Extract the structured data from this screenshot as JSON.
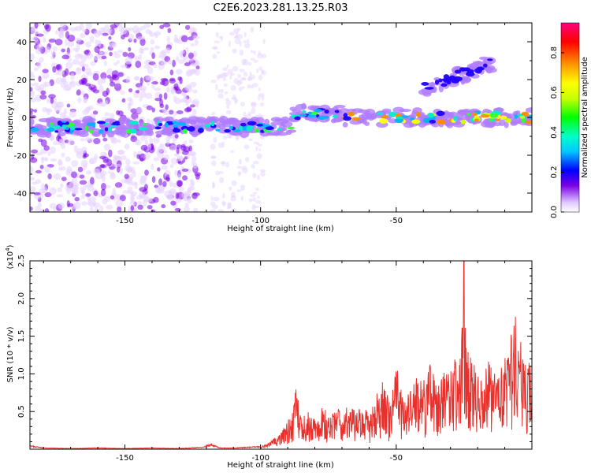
{
  "title": "C2E6.2023.281.13.25.R03",
  "chart_data": [
    {
      "type": "heatmap",
      "xlabel": "Height of straight line (km)",
      "ylabel": "Frequency (Hz)",
      "xlim": [
        -185,
        0
      ],
      "ylim": [
        -50,
        50
      ],
      "xticks": [
        -150,
        -100,
        -50
      ],
      "yticks": [
        -40,
        -20,
        0,
        20,
        40
      ],
      "colorbar": {
        "label": "Normalized spectral amplitude",
        "range": [
          0,
          0.95
        ],
        "ticks": [
          0.0,
          0.2,
          0.4,
          0.6,
          0.8
        ]
      },
      "features": [
        {
          "x_start": -185,
          "x_end": -123,
          "y_center": -5,
          "max_amplitude": 0.55
        },
        {
          "x_start": -123,
          "x_end": -88,
          "y_center": -5,
          "max_amplitude": 0.6
        },
        {
          "x_start": -88,
          "x_end": -70,
          "y_center": 2,
          "max_amplitude": 0.6
        },
        {
          "x_start": -70,
          "x_end": 0,
          "y_center": 0,
          "max_amplitude": 0.95
        },
        {
          "x_start": -40,
          "x_end": -15,
          "y_center": 20,
          "max_amplitude": 0.25
        }
      ]
    },
    {
      "type": "line",
      "xlabel": "Height of straight line (km)",
      "ylabel": "SNR (10 * v/v)",
      "y_multiplier": "(x10",
      "y_multiplier_exp": "4",
      "y_multiplier_close": ")",
      "xlim": [
        -185,
        0
      ],
      "ylim": [
        0,
        2.5
      ],
      "xticks": [
        -150,
        -100,
        -50
      ],
      "yticks": [
        0.5,
        1.0,
        1.5,
        2.0,
        2.5
      ],
      "color": "#e8312d",
      "series": [
        {
          "x": [
            -185,
            -180,
            -170,
            -160,
            -150,
            -140,
            -130,
            -122,
            -118,
            -115,
            -110,
            -105,
            -100,
            -97,
            -95,
            -93,
            -90,
            -88,
            -87,
            -85,
            -82,
            -80,
            -77,
            -75,
            -72,
            -70,
            -67,
            -65,
            -62,
            -60,
            -57,
            -55,
            -52,
            -50,
            -47,
            -45,
            -42,
            -40,
            -37,
            -35,
            -32,
            -30,
            -28,
            -26,
            -25,
            -24,
            -22,
            -20,
            -18,
            -16,
            -14,
            -12,
            -10,
            -8,
            -6,
            -5,
            -4,
            -2,
            0
          ],
          "y": [
            0.05,
            0.02,
            0.01,
            0.02,
            0.01,
            0.02,
            0.01,
            0.03,
            0.07,
            0.02,
            0.02,
            0.03,
            0.04,
            0.08,
            0.15,
            0.25,
            0.4,
            0.55,
            0.82,
            0.45,
            0.55,
            0.4,
            0.6,
            0.45,
            0.62,
            0.4,
            0.7,
            0.5,
            0.6,
            0.45,
            0.75,
            0.9,
            0.6,
            1.22,
            0.6,
            0.8,
            1.05,
            0.9,
            1.2,
            0.85,
            1.05,
            1.1,
            1.25,
            1.35,
            2.5,
            1.45,
            1.2,
            1.0,
            0.9,
            1.3,
            1.1,
            1.0,
            1.35,
            1.5,
            1.82,
            1.3,
            1.52,
            1.1,
            1.2
          ]
        }
      ]
    }
  ]
}
